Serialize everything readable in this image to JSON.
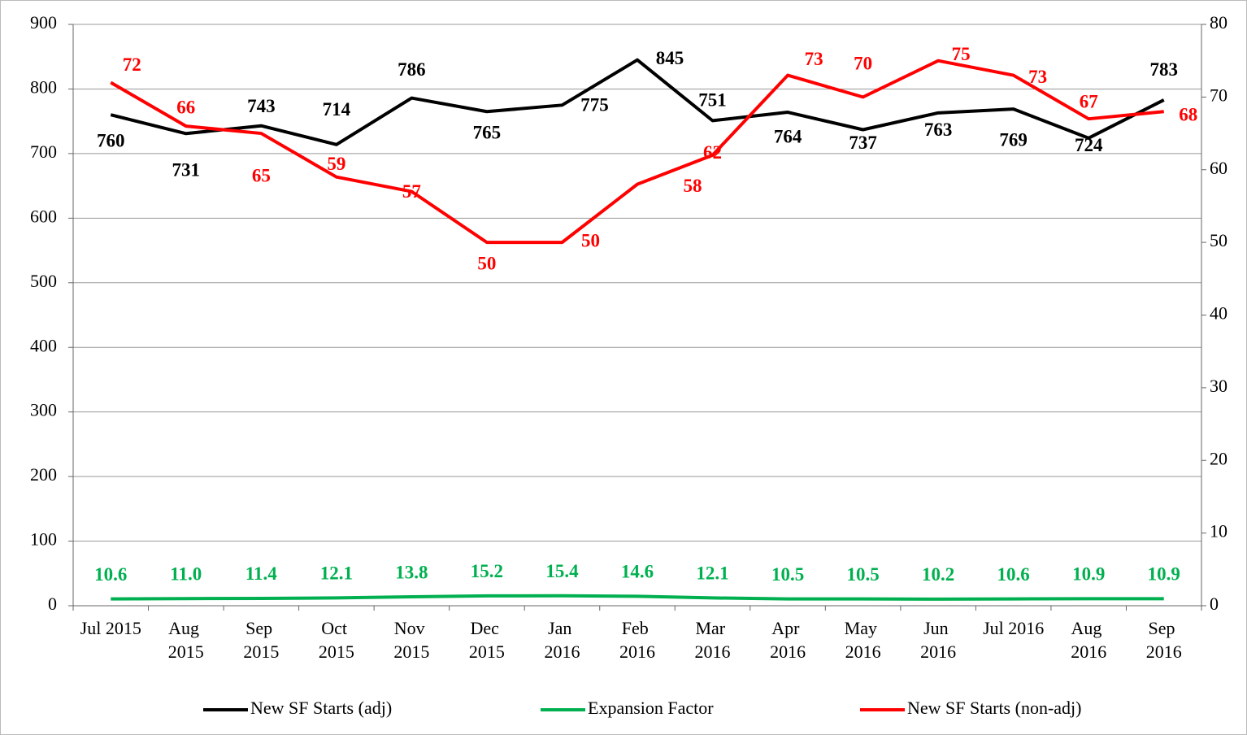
{
  "chart_data": {
    "type": "line",
    "categories": [
      "Jul 2015",
      "Aug 2015",
      "Sep 2015",
      "Oct 2015",
      "Nov 2015",
      "Dec 2015",
      "Jan 2016",
      "Feb 2016",
      "Mar 2016",
      "Apr 2016",
      "May 2016",
      "Jun 2016",
      "Jul 2016",
      "Aug 2016",
      "Sep 2016"
    ],
    "series": [
      {
        "name": "New SF Starts (adj)",
        "color": "#000000",
        "values": [
          760,
          731,
          743,
          714,
          786,
          765,
          775,
          845,
          751,
          764,
          737,
          763,
          769,
          724,
          783
        ]
      },
      {
        "name": "Expansion Factor",
        "color": "#00b050",
        "values": [
          10.6,
          11,
          11.4,
          12.1,
          13.8,
          15.2,
          15.4,
          14.6,
          12.1,
          10.5,
          10.5,
          10.2,
          10.6,
          10.9,
          10.9
        ],
        "value_labels": [
          "10.6",
          "11.0",
          "11.4",
          "12.1",
          "13.8",
          "15.2",
          "15.4",
          "14.6",
          "12.1",
          "10.5",
          "10.5",
          "10.2",
          "10.6",
          "10.9",
          "10.9"
        ]
      },
      {
        "name": "New SF Starts (non-adj)",
        "color": "#ff0000",
        "axis": "y2",
        "values": [
          72,
          66,
          65,
          59,
          57,
          50,
          50,
          58,
          62,
          73,
          70,
          75,
          73,
          67,
          68
        ]
      }
    ],
    "ylim": [
      0,
      900
    ],
    "yticks": [
      0,
      100,
      200,
      300,
      400,
      500,
      600,
      700,
      800,
      900
    ],
    "y2lim": [
      0,
      80
    ],
    "y2ticks": [
      0,
      10,
      20,
      30,
      40,
      50,
      60,
      70,
      80
    ],
    "grid": true,
    "legend": "bottom"
  }
}
